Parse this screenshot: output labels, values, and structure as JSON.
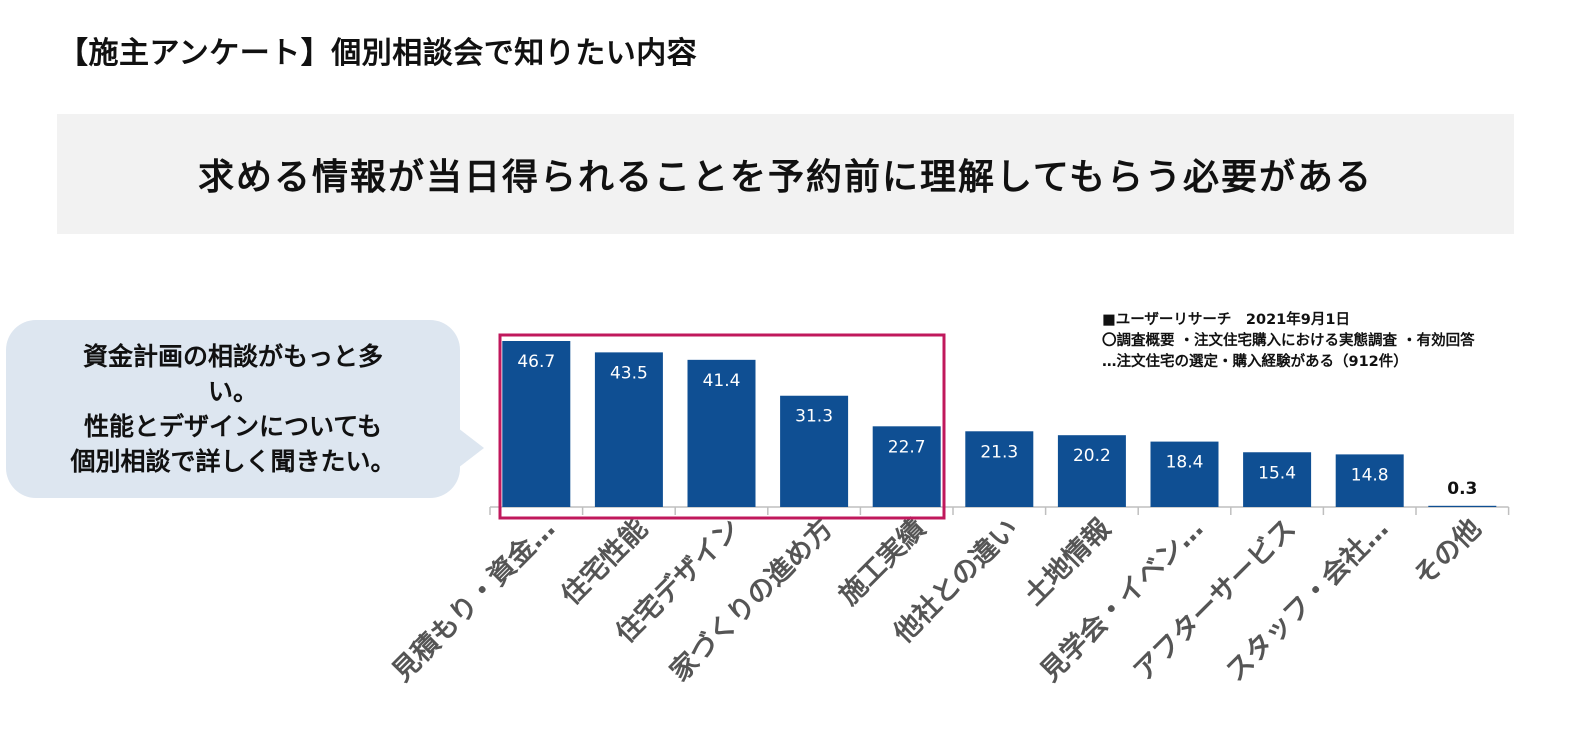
{
  "header": {
    "title": "【施主アンケート】個別相談会で知りたい内容"
  },
  "banner": {
    "text": "求める情報が当日得られることを予約前に理解してもらう必要がある"
  },
  "callout": {
    "lines": [
      "資金計画の相談がもっと多",
      "い。",
      "性能とデザインについても",
      "個別相談で詳しく聞きたい。"
    ]
  },
  "source_note": {
    "line1": "■ユーザーリサーチ　2021年9月1日",
    "line2": "〇調査概要 ・注文住宅購入における実態調査 ・有効回答",
    "line3": "…注文住宅の選定・購入経験がある（912件）"
  },
  "colors": {
    "bar": "#0f4f93",
    "highlight_box": "#c0185c",
    "axis": "#bfbfbf",
    "label_inside": "#ffffff",
    "label_outside": "#111111",
    "category_text": "#555555"
  },
  "chart_data": {
    "type": "bar",
    "categories": [
      "見積もり・資金…",
      "住宅性能",
      "住宅デザイン",
      "家づくりの進め方",
      "施工実績",
      "他社との違い",
      "土地情報",
      "見学会・イベン…",
      "アフターサービス",
      "スタッフ・会社…",
      "その他"
    ],
    "values": [
      46.7,
      43.5,
      41.4,
      31.3,
      22.7,
      21.3,
      20.2,
      18.4,
      15.4,
      14.8,
      0.3
    ],
    "value_labels": [
      "46.7",
      "43.5",
      "41.4",
      "31.3",
      "22.7",
      "21.3",
      "20.2",
      "18.4",
      "15.4",
      "14.8",
      "0.3"
    ],
    "ylim": [
      0,
      46.7
    ],
    "highlighted_count": 5,
    "title": "",
    "xlabel": "",
    "ylabel": ""
  }
}
